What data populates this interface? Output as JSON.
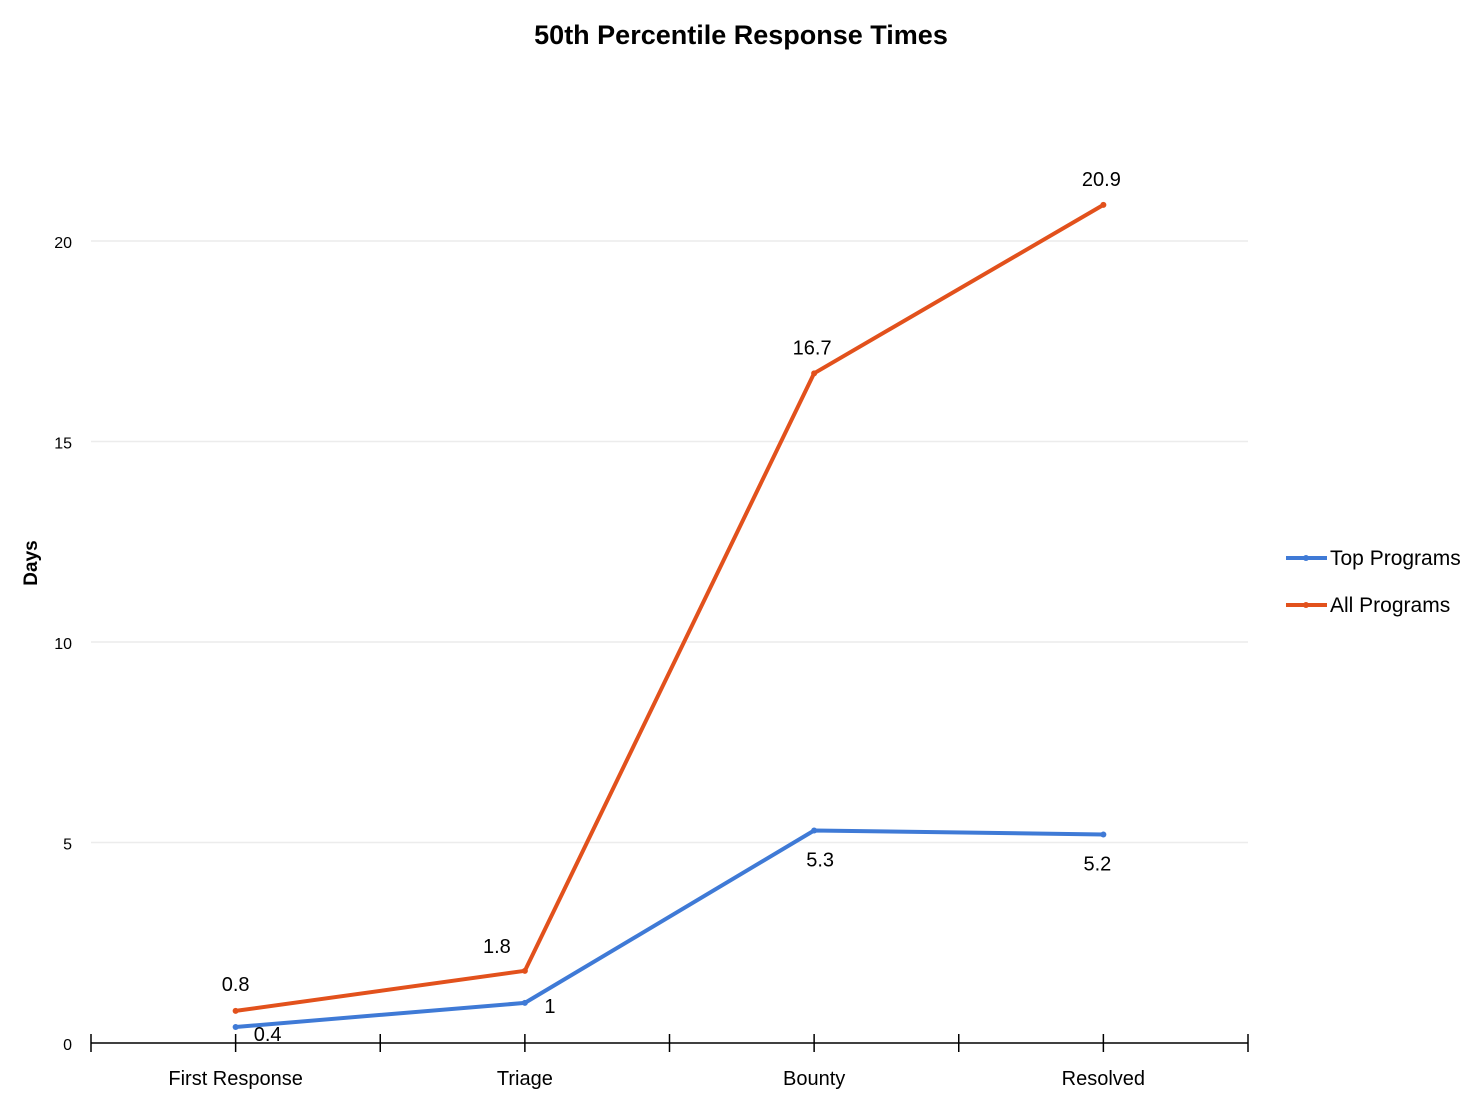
{
  "chart_data": {
    "type": "line",
    "title": "50th Percentile Response Times",
    "xlabel": "",
    "ylabel": "Days",
    "categories": [
      "First Response",
      "Triage",
      "Bounty",
      "Resolved"
    ],
    "ylim": [
      0,
      20
    ],
    "yticks": [
      0,
      5,
      10,
      15,
      20
    ],
    "grid": true,
    "legend_position": "right",
    "series": [
      {
        "name": "Top Programs",
        "values": [
          0.4,
          1,
          5.3,
          5.2
        ],
        "labels": [
          "0.4",
          "1",
          "5.3",
          "5.2"
        ],
        "color": "#3f7ad6"
      },
      {
        "name": "All Programs",
        "values": [
          0.8,
          1.8,
          16.7,
          20.9
        ],
        "labels": [
          "0.8",
          "1.8",
          "16.7",
          "20.9"
        ],
        "color": "#e2511c"
      }
    ]
  }
}
